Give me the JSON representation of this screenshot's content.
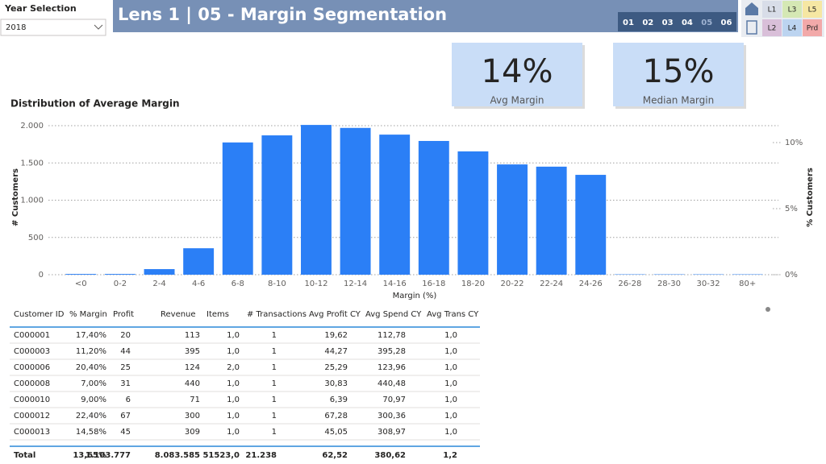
{
  "slicer": {
    "label": "Year Selection",
    "value": "2018"
  },
  "header": {
    "title": "Lens 1 | 05 - Margin Segmentation",
    "pages": [
      "01",
      "02",
      "03",
      "04",
      "05",
      "06"
    ]
  },
  "nav": {
    "buttons": [
      "L1",
      "L3",
      "L5",
      "L2",
      "L4",
      "Prd"
    ]
  },
  "kpis": [
    {
      "value": "14%",
      "label": "Avg Margin"
    },
    {
      "value": "15%",
      "label": "Median Margin"
    }
  ],
  "chart_data": {
    "type": "bar",
    "title": "Distribution of Average Margin",
    "x_label": "Margin (%)",
    "y_label": "# Customers",
    "y2_label": "% Customers",
    "categories": [
      "<0",
      "0-2",
      "2-4",
      "4-6",
      "6-8",
      "8-10",
      "10-12",
      "12-14",
      "14-16",
      "16-18",
      "18-20",
      "20-22",
      "22-24",
      "24-26",
      "26-28",
      "28-30",
      "30-32",
      "80+"
    ],
    "values": [
      10,
      10,
      75,
      355,
      1775,
      1870,
      2010,
      1970,
      1880,
      1795,
      1655,
      1480,
      1450,
      1340,
      5,
      5,
      5,
      5
    ],
    "color": "#2b7ff6",
    "ylim": [
      0,
      2065
    ],
    "yticks": [
      0,
      {
        "value": 500,
        "label": "500"
      },
      {
        "value": 1000,
        "label": "1.000"
      },
      {
        "value": 1500,
        "label": "1.500"
      },
      {
        "value": 2000,
        "label": "2.000"
      }
    ],
    "y2lim": [
      0,
      11.65
    ],
    "y2ticks": [
      {
        "value": 0,
        "label": "0%"
      },
      {
        "value": 5,
        "label": "5%"
      },
      {
        "value": 10,
        "label": "10%"
      }
    ],
    "grid": true
  },
  "table": {
    "headers": [
      "Customer ID",
      "% Margin",
      "Profit",
      "Revenue",
      "Items",
      "# Transactions",
      "Avg Profit CY",
      "Avg Spend CY",
      "Avg Trans CY"
    ],
    "rows": [
      [
        "C000001",
        "17,40%",
        "20",
        "113",
        "1,0",
        "1",
        "19,62",
        "112,78",
        "1,0"
      ],
      [
        "C000003",
        "11,20%",
        "44",
        "395",
        "1,0",
        "1",
        "44,27",
        "395,28",
        "1,0"
      ],
      [
        "C000006",
        "20,40%",
        "25",
        "124",
        "2,0",
        "1",
        "25,29",
        "123,96",
        "1,0"
      ],
      [
        "C000008",
        "7,00%",
        "31",
        "440",
        "1,0",
        "1",
        "30,83",
        "440,48",
        "1,0"
      ],
      [
        "C000010",
        "9,00%",
        "6",
        "71",
        "1,0",
        "1",
        "6,39",
        "70,97",
        "1,0"
      ],
      [
        "C000012",
        "22,40%",
        "67",
        "300",
        "1,0",
        "1",
        "67,28",
        "300,36",
        "1,0"
      ],
      [
        "C000013",
        "14,58%",
        "45",
        "309",
        "1,0",
        "1",
        "45,05",
        "308,97",
        "1,0"
      ]
    ],
    "total": [
      "Total",
      "13,65%",
      "1.103.777",
      "8.083.585",
      "51523,0",
      "21.238",
      "62,52",
      "380,62",
      "1,2"
    ]
  }
}
